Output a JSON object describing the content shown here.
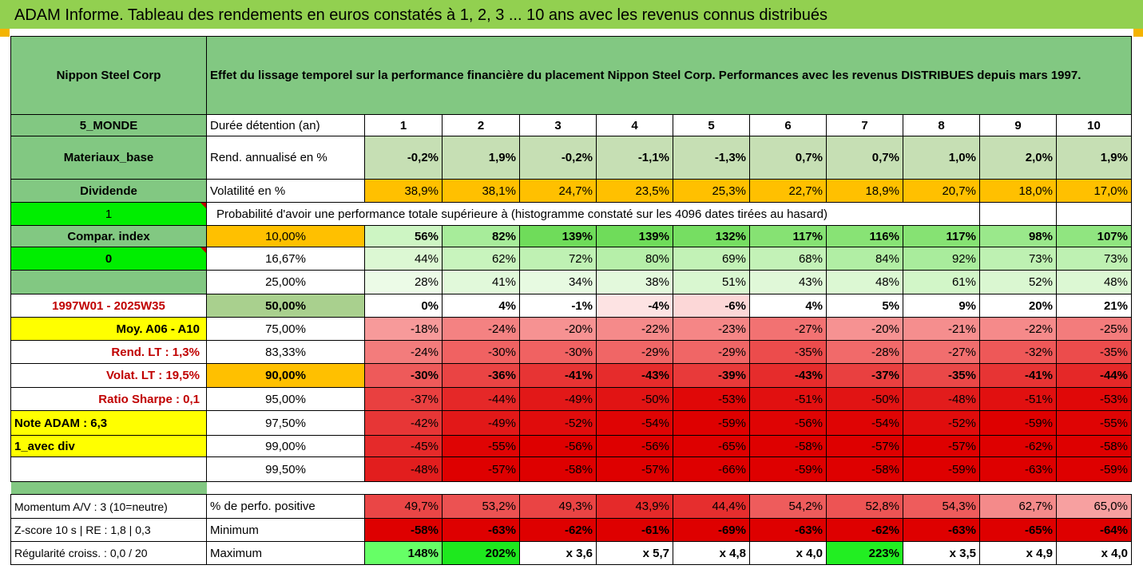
{
  "title": "ADAM Informe. Tableau des rendements en euros constatés à 1, 2, 3 ... 10 ans avec les revenus connus distribués",
  "company": "Nippon Steel Corp",
  "description": "Effet du lissage temporel sur la performance financière du placement Nippon Steel Corp. Performances avec les revenus DISTRIBUES depuis mars 1997.",
  "left": {
    "region": "5_MONDE",
    "sector": "Materiaux_base",
    "dividend": "Dividende",
    "one": "1",
    "compar": "Compar. index",
    "zero": "0",
    "period": "1997W01 - 2025W35",
    "moy": "Moy. A06 - A10",
    "rend_lt": "Rend. LT :   1,3%",
    "volat_lt": "Volat. LT :   19,5%",
    "sharpe": "Ratio Sharpe :   0,1",
    "note": "Note ADAM : 6,3",
    "avec_div": "1_avec div",
    "momentum": "Momentum A/V : 3 (10=neutre)",
    "zscore": "Z-score 10 s  | RE : 1,8 | 0,3",
    "regularite": "Régularité croiss. : 0,0 / 20"
  },
  "labels": {
    "duree": "Durée détention (an)",
    "rend": "Rend. annualisé en %",
    "volat": "Volatilité en %",
    "proba": "Probabilité d'avoir une performance totale supérieure à (histogramme constaté sur les 4096 dates tirées au hasard)",
    "positive": "% de perfo. positive",
    "minimum": "Minimum",
    "maximum": "Maximum"
  },
  "years": [
    "1",
    "2",
    "3",
    "4",
    "5",
    "6",
    "7",
    "8",
    "9",
    "10"
  ],
  "rend": [
    "-0,2%",
    "1,9%",
    "-0,2%",
    "-1,1%",
    "-1,3%",
    "0,7%",
    "0,7%",
    "1,0%",
    "2,0%",
    "1,9%"
  ],
  "volat": [
    "38,9%",
    "38,1%",
    "24,7%",
    "23,5%",
    "25,3%",
    "22,7%",
    "18,9%",
    "20,7%",
    "18,0%",
    "17,0%"
  ],
  "quantiles": [
    {
      "q": "10,00%",
      "vals": [
        "56%",
        "82%",
        "139%",
        "139%",
        "132%",
        "117%",
        "116%",
        "117%",
        "98%",
        "107%"
      ]
    },
    {
      "q": "16,67%",
      "vals": [
        "44%",
        "62%",
        "72%",
        "80%",
        "69%",
        "68%",
        "84%",
        "92%",
        "73%",
        "73%"
      ]
    },
    {
      "q": "25,00%",
      "vals": [
        "28%",
        "41%",
        "34%",
        "38%",
        "51%",
        "43%",
        "48%",
        "61%",
        "52%",
        "48%"
      ]
    },
    {
      "q": "50,00%",
      "vals": [
        "0%",
        "4%",
        "-1%",
        "-4%",
        "-6%",
        "4%",
        "5%",
        "9%",
        "20%",
        "21%"
      ]
    },
    {
      "q": "75,00%",
      "vals": [
        "-18%",
        "-24%",
        "-20%",
        "-22%",
        "-23%",
        "-27%",
        "-20%",
        "-21%",
        "-22%",
        "-25%"
      ]
    },
    {
      "q": "83,33%",
      "vals": [
        "-24%",
        "-30%",
        "-30%",
        "-29%",
        "-29%",
        "-35%",
        "-28%",
        "-27%",
        "-32%",
        "-35%"
      ]
    },
    {
      "q": "90,00%",
      "vals": [
        "-30%",
        "-36%",
        "-41%",
        "-43%",
        "-39%",
        "-43%",
        "-37%",
        "-35%",
        "-41%",
        "-44%"
      ]
    },
    {
      "q": "95,00%",
      "vals": [
        "-37%",
        "-44%",
        "-49%",
        "-50%",
        "-53%",
        "-51%",
        "-50%",
        "-48%",
        "-51%",
        "-53%"
      ]
    },
    {
      "q": "97,50%",
      "vals": [
        "-42%",
        "-49%",
        "-52%",
        "-54%",
        "-59%",
        "-56%",
        "-54%",
        "-52%",
        "-59%",
        "-55%"
      ]
    },
    {
      "q": "99,00%",
      "vals": [
        "-45%",
        "-55%",
        "-56%",
        "-56%",
        "-65%",
        "-58%",
        "-57%",
        "-57%",
        "-62%",
        "-58%"
      ]
    },
    {
      "q": "99,50%",
      "vals": [
        "-48%",
        "-57%",
        "-58%",
        "-57%",
        "-66%",
        "-59%",
        "-58%",
        "-59%",
        "-63%",
        "-59%"
      ]
    }
  ],
  "positive": [
    "49,7%",
    "53,2%",
    "49,3%",
    "43,9%",
    "44,4%",
    "54,2%",
    "52,8%",
    "54,3%",
    "62,7%",
    "65,0%"
  ],
  "minimum": [
    "-58%",
    "-63%",
    "-62%",
    "-61%",
    "-69%",
    "-63%",
    "-62%",
    "-63%",
    "-65%",
    "-64%"
  ],
  "maximum": [
    "148%",
    "202%",
    "x 3,6",
    "x 5,7",
    "x 4,8",
    "x 4,0",
    "223%",
    "x 3,5",
    "x 4,9",
    "x 4,0"
  ],
  "colors": {
    "header_green": "#82c882",
    "title_green": "#92d050",
    "bright_green": "#00ee00",
    "yellow": "#ffff00",
    "orange": "#ffc000",
    "red_text": "#c00000"
  }
}
